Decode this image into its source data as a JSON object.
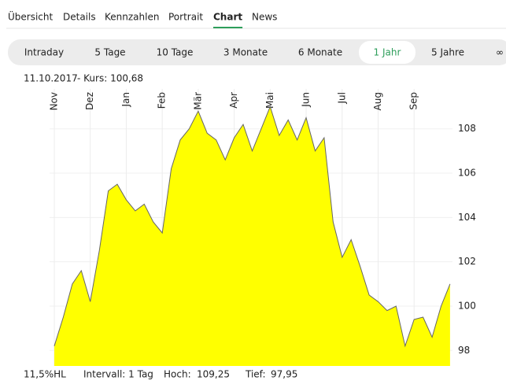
{
  "tabs": {
    "items": [
      "Übersicht",
      "Details",
      "Kennzahlen",
      "Portrait",
      "Chart",
      "News"
    ],
    "active": 4
  },
  "ranges": {
    "items": [
      "Intraday",
      "5 Tage",
      "10 Tage",
      "3 Monate",
      "6 Monate",
      "1 Jahr",
      "5 Jahre",
      "∞"
    ],
    "active": 5
  },
  "header": {
    "date": "11.10.2017",
    "price": "- Kurs: 100,68"
  },
  "footer": {
    "hl": "11,5%HL",
    "interval": "Intervall: 1 Tag",
    "high_label": "Hoch:",
    "high": "109,25",
    "low_label": "Tief:",
    "low": "97,95"
  },
  "chart_data": {
    "type": "area",
    "color": "#ffff00",
    "line_color": "#666666",
    "categories": [
      "Nov",
      null,
      null,
      null,
      "Dez",
      null,
      null,
      null,
      "Jan",
      null,
      null,
      null,
      "Feb",
      null,
      null,
      null,
      "Mär",
      null,
      null,
      null,
      "Apr",
      null,
      null,
      null,
      "Mai",
      null,
      null,
      null,
      "Jun",
      null,
      null,
      null,
      "Jul",
      null,
      null,
      null,
      "Aug",
      null,
      null,
      null,
      "Sep",
      null,
      null,
      null,
      null
    ],
    "values": [
      98.2,
      99.5,
      101.0,
      101.6,
      100.2,
      102.5,
      105.2,
      105.5,
      104.8,
      104.3,
      104.6,
      103.8,
      103.3,
      106.2,
      107.5,
      108.0,
      108.8,
      107.8,
      107.5,
      106.6,
      107.6,
      108.2,
      107.0,
      108.0,
      109.0,
      107.7,
      108.4,
      107.5,
      108.5,
      107.0,
      107.6,
      103.8,
      102.2,
      103.0,
      101.8,
      100.5,
      100.2,
      99.8,
      100.0,
      98.2,
      99.4,
      99.5,
      98.6,
      100.0,
      101.0
    ],
    "ylim": [
      97.3,
      109.8
    ],
    "yticks": [
      98,
      100,
      102,
      104,
      106,
      108
    ],
    "grid": true
  }
}
